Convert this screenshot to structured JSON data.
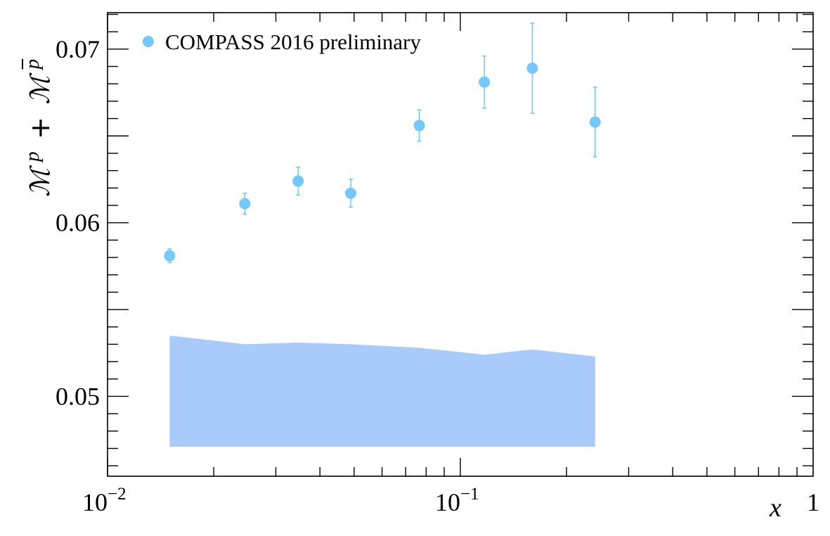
{
  "chart_data": {
    "type": "scatter",
    "xscale": "log",
    "xlim": [
      0.01,
      1
    ],
    "ylim": [
      0.0454,
      0.0721
    ],
    "xlabel": "x",
    "ylabel": "ℳ p + ℳ p̄",
    "ylabel_parts": {
      "m1": "ℳ",
      "sup1": "p",
      "plus": "+",
      "m2": "ℳ",
      "sup2": "p"
    },
    "x_ticks": [
      {
        "value": 0.01,
        "base": "10",
        "exp": "−2"
      },
      {
        "value": 0.1,
        "base": "10",
        "exp": "−1"
      },
      {
        "value": 1,
        "base": "1",
        "exp": ""
      }
    ],
    "y_ticks": [
      {
        "value": 0.05,
        "label": "0.05"
      },
      {
        "value": 0.06,
        "label": "0.06"
      },
      {
        "value": 0.07,
        "label": "0.07"
      }
    ],
    "grid": false,
    "legend_position": "top-left",
    "series": [
      {
        "name": "COMPASS 2016 preliminary",
        "color": "#74c8fa",
        "x": [
          0.015,
          0.0245,
          0.0347,
          0.0489,
          0.0765,
          0.117,
          0.16,
          0.241
        ],
        "y": [
          0.0581,
          0.0611,
          0.0624,
          0.0617,
          0.0656,
          0.0681,
          0.0689,
          0.0658
        ],
        "yerr": [
          0.0004,
          0.0006,
          0.0008,
          0.0008,
          0.0009,
          0.0015,
          0.0026,
          0.002
        ]
      }
    ],
    "band": {
      "color": "#a8cbfb",
      "x": [
        0.015,
        0.0245,
        0.0347,
        0.0489,
        0.0765,
        0.117,
        0.16,
        0.241
      ],
      "lower": [
        0.0471,
        0.0471,
        0.0471,
        0.0471,
        0.0471,
        0.0471,
        0.0471,
        0.0471
      ],
      "upper": [
        0.0535,
        0.053,
        0.0531,
        0.053,
        0.0528,
        0.0524,
        0.0527,
        0.0523
      ]
    }
  }
}
